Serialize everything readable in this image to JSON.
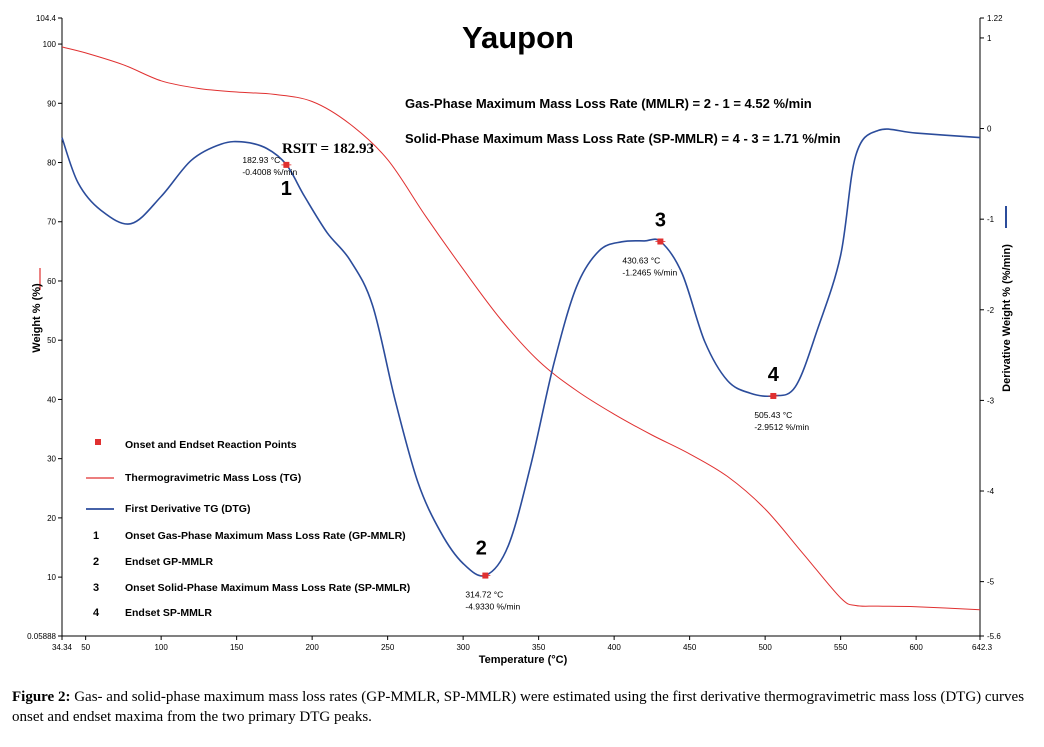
{
  "chart_data": {
    "type": "line",
    "title": "Yaupon",
    "xlabel": "Temperature (°C)",
    "ylabel_left": "Weight % (%)",
    "ylabel_right": "Derivative Weight % (%/min)",
    "xlim": [
      34.34,
      642.3
    ],
    "ylim_left": [
      0.05888,
      104.4
    ],
    "ylim_right": [
      -5.6,
      1.22
    ],
    "x_ticks": [
      "34.34",
      "50",
      "100",
      "150",
      "200",
      "250",
      "300",
      "350",
      "400",
      "450",
      "500",
      "550",
      "600",
      "642.3"
    ],
    "x_tick_values": [
      34.34,
      50,
      100,
      150,
      200,
      250,
      300,
      350,
      400,
      450,
      500,
      550,
      600,
      642.3
    ],
    "y_left_ticks": [
      "104.4",
      "100",
      "90",
      "80",
      "70",
      "60",
      "50",
      "40",
      "30",
      "20",
      "10",
      "0.05888"
    ],
    "y_left_tick_values": [
      104.4,
      100,
      90,
      80,
      70,
      60,
      50,
      40,
      30,
      20,
      10,
      0.05888
    ],
    "y_right_ticks": [
      "1.22",
      "1",
      "0",
      "-1",
      "-2",
      "-3",
      "-4",
      "-5",
      "-5.6"
    ],
    "y_right_tick_values": [
      1.22,
      1,
      0,
      -1,
      -2,
      -3,
      -4,
      -5,
      -5.6
    ],
    "series": [
      {
        "name": "Thermogravimetric Mass Loss (TG)",
        "axis": "left",
        "color": "#e03030",
        "x": [
          34.34,
          50,
          75,
          100,
          125,
          150,
          175,
          200,
          225,
          250,
          275,
          300,
          325,
          350,
          375,
          400,
          425,
          450,
          475,
          500,
          525,
          550,
          560,
          575,
          600,
          642.3
        ],
        "y": [
          99.5,
          98.5,
          96.5,
          93.8,
          92.5,
          91.9,
          91.5,
          90.3,
          86.5,
          80.5,
          71.0,
          62.0,
          53.5,
          46.5,
          41.5,
          37.5,
          34.0,
          30.8,
          27.0,
          21.5,
          14.0,
          6.5,
          5.2,
          5.1,
          5.0,
          4.5
        ]
      },
      {
        "name": "First Derivative TG (DTG)",
        "axis": "right",
        "color": "#2b4c9b",
        "x": [
          34.34,
          45,
          60,
          80,
          100,
          120,
          140,
          155,
          170,
          183,
          195,
          210,
          225,
          240,
          255,
          270,
          285,
          300,
          315,
          330,
          345,
          360,
          375,
          390,
          405,
          420,
          431,
          445,
          460,
          475,
          490,
          505,
          520,
          535,
          550,
          560,
          575,
          600,
          642.3
        ],
        "y": [
          -0.1,
          -0.6,
          -0.9,
          -1.05,
          -0.75,
          -0.35,
          -0.17,
          -0.15,
          -0.22,
          -0.4,
          -0.75,
          -1.15,
          -1.45,
          -1.95,
          -3.0,
          -3.9,
          -4.45,
          -4.8,
          -4.93,
          -4.6,
          -3.7,
          -2.6,
          -1.75,
          -1.35,
          -1.25,
          -1.24,
          -1.25,
          -1.6,
          -2.35,
          -2.78,
          -2.92,
          -2.95,
          -2.85,
          -2.2,
          -1.4,
          -0.3,
          -0.02,
          -0.05,
          -0.1
        ]
      }
    ],
    "markers": {
      "name": "Onset and Endset Reaction Points",
      "color": "#e03030",
      "points": [
        {
          "id": "1",
          "x": 182.93,
          "y": -0.4008,
          "label_temp": "182.93 °C",
          "label_rate": "-0.4008 %/min"
        },
        {
          "id": "2",
          "x": 314.72,
          "y": -4.933,
          "label_temp": "314.72 °C",
          "label_rate": "-4.9330 %/min"
        },
        {
          "id": "3",
          "x": 430.63,
          "y": -1.2465,
          "label_temp": "430.63 °C",
          "label_rate": "-1.2465 %/min"
        },
        {
          "id": "4",
          "x": 505.43,
          "y": -2.9512,
          "label_temp": "505.43 °C",
          "label_rate": "-2.9512 %/min"
        }
      ]
    },
    "annotations": {
      "rsit": "RSIT = 182.93",
      "mmlr": "Gas-Phase Maximum Mass Loss Rate (MMLR) = 2 - 1 = 4.52 %/min",
      "sp_mmlr": "Solid-Phase Maximum Mass Loss Rate (SP-MMLR) = 4 - 3 = 1.71 %/min"
    },
    "legend": {
      "position": "bottom-left",
      "items": [
        {
          "symbol": "marker",
          "text": "Onset and Endset Reaction Points"
        },
        {
          "symbol": "line-red",
          "text": "Thermogravimetric Mass Loss (TG)"
        },
        {
          "symbol": "line-blue",
          "text": "First Derivative TG (DTG)"
        },
        {
          "symbol": "1",
          "text": "Onset Gas-Phase Maximum Mass Loss Rate (GP-MMLR)"
        },
        {
          "symbol": "2",
          "text": "Endset GP-MMLR"
        },
        {
          "symbol": "3",
          "text": "Onset Solid-Phase Maximum Mass Loss Rate (SP-MMLR)"
        },
        {
          "symbol": "4",
          "text": "Endset SP-MMLR"
        }
      ]
    }
  },
  "caption": {
    "label": "Figure 2:",
    "text": "Gas- and solid-phase maximum mass loss rates (GP-MMLR, SP-MMLR) were estimated using the first derivative thermogravimetric mass loss (DTG) curves onset and endset maxima from the two primary DTG peaks."
  }
}
